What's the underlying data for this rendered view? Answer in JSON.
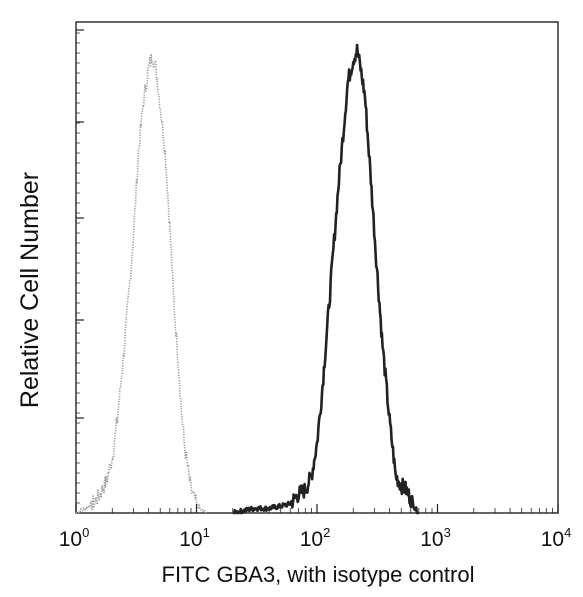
{
  "chart_data": {
    "type": "line",
    "title": "",
    "xlabel": "FITC  GBA3,  with isotype control",
    "ylabel": "Relative Cell Number",
    "x_scale": "log",
    "xlim": [
      1,
      10000
    ],
    "ylim": [
      0,
      1
    ],
    "grid": false,
    "legend": "none",
    "x_ticks": [
      {
        "value": 1,
        "base": "10",
        "exp": "0"
      },
      {
        "value": 10,
        "base": "10",
        "exp": "1"
      },
      {
        "value": 100,
        "base": "10",
        "exp": "2"
      },
      {
        "value": 1000,
        "base": "10",
        "exp": "3"
      },
      {
        "value": 10000,
        "base": "10",
        "exp": "4"
      }
    ],
    "series": [
      {
        "color": "#9a9a9a",
        "style": "dotted",
        "x": [
          1.0,
          1.2,
          1.5,
          1.8,
          2.0,
          2.2,
          2.5,
          2.8,
          3.0,
          3.3,
          3.6,
          4.0,
          4.3,
          4.6,
          5.0,
          5.5,
          6.0,
          6.5,
          7.0,
          7.5,
          8.0,
          9.0,
          10.0,
          11.0,
          12.0
        ],
        "y": [
          0.0,
          0.01,
          0.03,
          0.07,
          0.12,
          0.2,
          0.35,
          0.5,
          0.6,
          0.78,
          0.88,
          0.96,
          0.99,
          0.96,
          0.88,
          0.78,
          0.62,
          0.45,
          0.34,
          0.22,
          0.14,
          0.05,
          0.02,
          0.005,
          0.0
        ]
      },
      {
        "color": "#222222",
        "style": "solid",
        "x": [
          20,
          30,
          40,
          50,
          60,
          70,
          80,
          90,
          100,
          110,
          120,
          135,
          150,
          165,
          180,
          200,
          215,
          230,
          250,
          280,
          310,
          350,
          400,
          450,
          500,
          550,
          600,
          650,
          700
        ],
        "y": [
          0.0,
          0.01,
          0.01,
          0.015,
          0.02,
          0.04,
          0.05,
          0.08,
          0.15,
          0.26,
          0.38,
          0.55,
          0.7,
          0.82,
          0.93,
          0.98,
          1.0,
          0.96,
          0.9,
          0.72,
          0.55,
          0.36,
          0.2,
          0.08,
          0.06,
          0.05,
          0.03,
          0.01,
          0.0
        ]
      }
    ]
  }
}
